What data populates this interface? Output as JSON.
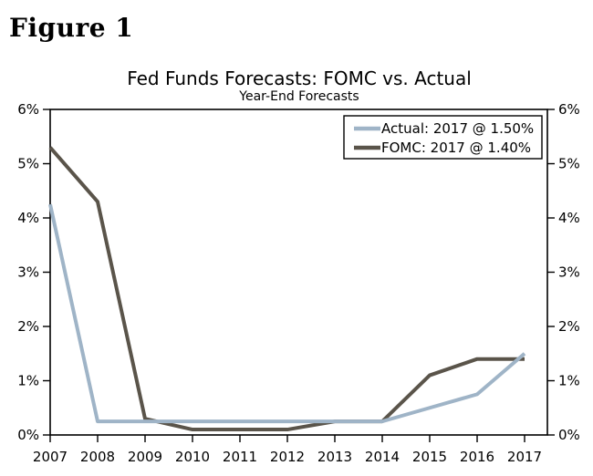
{
  "figure_label": "Figure 1",
  "colors": {
    "background": "#ffffff",
    "axis": "#000000",
    "text": "#000000",
    "actual_line": "#9FB4C7",
    "fomc_line": "#5A544A"
  },
  "chart_data": {
    "type": "line",
    "title": "Fed Funds Forecasts: FOMC vs. Actual",
    "subtitle": "Year-End Forecasts",
    "xlabel": "",
    "ylabel": "",
    "categories": [
      2007,
      2008,
      2009,
      2010,
      2011,
      2012,
      2013,
      2014,
      2015,
      2016,
      2017
    ],
    "ylim": [
      0,
      6
    ],
    "y_tick_step": 1,
    "y_tick_suffix": "%",
    "y_axis_sides": [
      "left",
      "right"
    ],
    "grid": false,
    "legend_position": "top-right",
    "series": [
      {
        "name": "Actual",
        "label": "Actual: 2017 @ 1.50%",
        "color": "#9FB4C7",
        "values": [
          4.25,
          0.25,
          0.25,
          0.25,
          0.25,
          0.25,
          0.25,
          0.25,
          0.5,
          0.75,
          1.5
        ]
      },
      {
        "name": "FOMC",
        "label": "FOMC: 2017 @ 1.40%",
        "color": "#5A544A",
        "values": [
          5.3,
          4.3,
          0.3,
          0.1,
          0.1,
          0.1,
          0.25,
          0.25,
          1.1,
          1.4,
          1.4
        ]
      }
    ]
  }
}
